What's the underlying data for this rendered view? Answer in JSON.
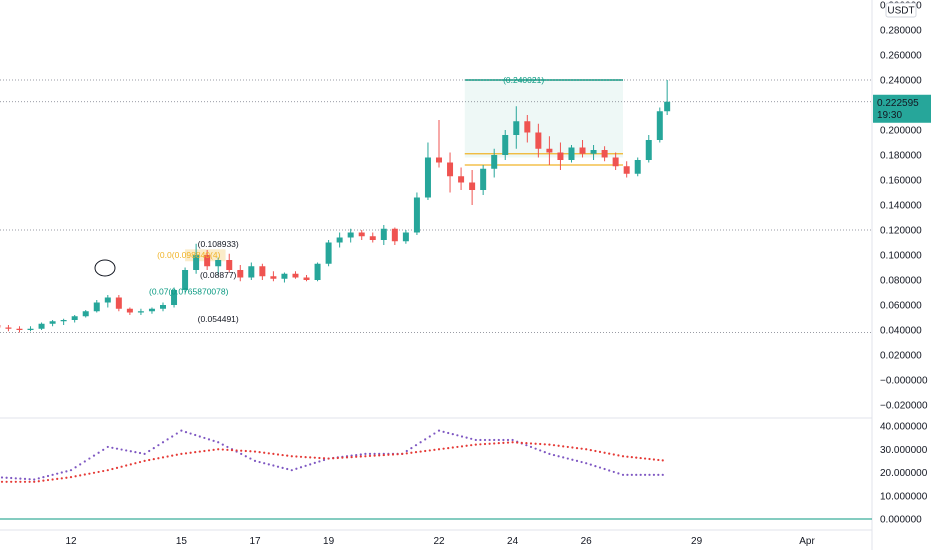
{
  "chart_data": {
    "type": "candlestick",
    "currency": "USDT",
    "price_axis": {
      "range": [
        -0.03,
        0.3
      ],
      "ticks": [
        "0.300000",
        "0.280000",
        "0.260000",
        "0.240000",
        "0.220000",
        "0.200000",
        "0.180000",
        "0.160000",
        "0.140000",
        "0.120000",
        "0.100000",
        "0.080000",
        "0.060000",
        "0.040000",
        "0.020000",
        "−0.000000",
        "−0.020000"
      ],
      "tick_values": [
        0.3,
        0.28,
        0.26,
        0.24,
        0.22,
        0.2,
        0.18,
        0.16,
        0.14,
        0.12,
        0.1,
        0.08,
        0.06,
        0.04,
        0.02,
        0.0,
        -0.02
      ]
    },
    "last_price": {
      "label": "0.222595",
      "value": 0.222595,
      "countdown": "19:30",
      "color": "#26a69a"
    },
    "horizontal_lines": [
      0.240021,
      0.222595,
      0.12,
      0.038
    ],
    "x_axis": {
      "labels": [
        "12",
        "15",
        "17",
        "19",
        "22",
        "24",
        "26",
        "29",
        "Apr"
      ],
      "label_days": [
        12,
        15,
        17,
        19,
        22,
        24,
        26,
        29,
        32
      ]
    },
    "candles_daily_centers": [
      {
        "d": 10.0,
        "o": 0.044,
        "h": 0.047,
        "l": 0.039,
        "c": 0.042
      },
      {
        "d": 10.3,
        "o": 0.042,
        "h": 0.044,
        "l": 0.039,
        "c": 0.041
      },
      {
        "d": 10.6,
        "o": 0.041,
        "h": 0.043,
        "l": 0.038,
        "c": 0.04
      },
      {
        "d": 10.9,
        "o": 0.04,
        "h": 0.043,
        "l": 0.039,
        "c": 0.041
      },
      {
        "d": 11.2,
        "o": 0.041,
        "h": 0.046,
        "l": 0.04,
        "c": 0.045
      },
      {
        "d": 11.5,
        "o": 0.045,
        "h": 0.048,
        "l": 0.043,
        "c": 0.047
      },
      {
        "d": 11.8,
        "o": 0.047,
        "h": 0.049,
        "l": 0.044,
        "c": 0.048
      },
      {
        "d": 12.1,
        "o": 0.048,
        "h": 0.052,
        "l": 0.046,
        "c": 0.051
      },
      {
        "d": 12.4,
        "o": 0.051,
        "h": 0.056,
        "l": 0.05,
        "c": 0.055
      },
      {
        "d": 12.7,
        "o": 0.055,
        "h": 0.064,
        "l": 0.054,
        "c": 0.062
      },
      {
        "d": 13.0,
        "o": 0.062,
        "h": 0.068,
        "l": 0.058,
        "c": 0.066
      },
      {
        "d": 13.3,
        "o": 0.066,
        "h": 0.068,
        "l": 0.055,
        "c": 0.057
      },
      {
        "d": 13.6,
        "o": 0.057,
        "h": 0.058,
        "l": 0.052,
        "c": 0.054
      },
      {
        "d": 13.9,
        "o": 0.054,
        "h": 0.057,
        "l": 0.052,
        "c": 0.055
      },
      {
        "d": 14.2,
        "o": 0.055,
        "h": 0.058,
        "l": 0.053,
        "c": 0.057
      },
      {
        "d": 14.5,
        "o": 0.057,
        "h": 0.062,
        "l": 0.055,
        "c": 0.06
      },
      {
        "d": 14.8,
        "o": 0.06,
        "h": 0.074,
        "l": 0.058,
        "c": 0.072
      },
      {
        "d": 15.1,
        "o": 0.072,
        "h": 0.09,
        "l": 0.07,
        "c": 0.088
      },
      {
        "d": 15.4,
        "o": 0.088,
        "h": 0.109,
        "l": 0.085,
        "c": 0.1
      },
      {
        "d": 15.7,
        "o": 0.1,
        "h": 0.104,
        "l": 0.088,
        "c": 0.091
      },
      {
        "d": 16.0,
        "o": 0.091,
        "h": 0.098,
        "l": 0.084,
        "c": 0.096
      },
      {
        "d": 16.3,
        "o": 0.096,
        "h": 0.101,
        "l": 0.086,
        "c": 0.088
      },
      {
        "d": 16.6,
        "o": 0.088,
        "h": 0.092,
        "l": 0.079,
        "c": 0.082
      },
      {
        "d": 16.9,
        "o": 0.082,
        "h": 0.094,
        "l": 0.08,
        "c": 0.091
      },
      {
        "d": 17.2,
        "o": 0.091,
        "h": 0.093,
        "l": 0.08,
        "c": 0.083
      },
      {
        "d": 17.5,
        "o": 0.083,
        "h": 0.087,
        "l": 0.079,
        "c": 0.081
      },
      {
        "d": 17.8,
        "o": 0.081,
        "h": 0.086,
        "l": 0.078,
        "c": 0.085
      },
      {
        "d": 18.1,
        "o": 0.085,
        "h": 0.087,
        "l": 0.081,
        "c": 0.082
      },
      {
        "d": 18.4,
        "o": 0.082,
        "h": 0.084,
        "l": 0.079,
        "c": 0.08
      },
      {
        "d": 18.7,
        "o": 0.08,
        "h": 0.094,
        "l": 0.079,
        "c": 0.093
      },
      {
        "d": 19.0,
        "o": 0.093,
        "h": 0.112,
        "l": 0.091,
        "c": 0.11
      },
      {
        "d": 19.3,
        "o": 0.11,
        "h": 0.118,
        "l": 0.106,
        "c": 0.114
      },
      {
        "d": 19.6,
        "o": 0.114,
        "h": 0.121,
        "l": 0.11,
        "c": 0.118
      },
      {
        "d": 19.9,
        "o": 0.118,
        "h": 0.12,
        "l": 0.112,
        "c": 0.115
      },
      {
        "d": 20.2,
        "o": 0.115,
        "h": 0.118,
        "l": 0.11,
        "c": 0.112
      },
      {
        "d": 20.5,
        "o": 0.112,
        "h": 0.124,
        "l": 0.108,
        "c": 0.121
      },
      {
        "d": 20.8,
        "o": 0.121,
        "h": 0.122,
        "l": 0.108,
        "c": 0.111
      },
      {
        "d": 21.1,
        "o": 0.111,
        "h": 0.12,
        "l": 0.109,
        "c": 0.118
      },
      {
        "d": 21.4,
        "o": 0.118,
        "h": 0.15,
        "l": 0.116,
        "c": 0.146
      },
      {
        "d": 21.7,
        "o": 0.146,
        "h": 0.19,
        "l": 0.144,
        "c": 0.178
      },
      {
        "d": 22.0,
        "o": 0.178,
        "h": 0.208,
        "l": 0.17,
        "c": 0.174
      },
      {
        "d": 22.3,
        "o": 0.174,
        "h": 0.182,
        "l": 0.15,
        "c": 0.163
      },
      {
        "d": 22.6,
        "o": 0.163,
        "h": 0.17,
        "l": 0.152,
        "c": 0.158
      },
      {
        "d": 22.9,
        "o": 0.158,
        "h": 0.168,
        "l": 0.14,
        "c": 0.152
      },
      {
        "d": 23.2,
        "o": 0.152,
        "h": 0.172,
        "l": 0.148,
        "c": 0.169
      },
      {
        "d": 23.5,
        "o": 0.169,
        "h": 0.185,
        "l": 0.162,
        "c": 0.18
      },
      {
        "d": 23.8,
        "o": 0.18,
        "h": 0.2,
        "l": 0.176,
        "c": 0.196
      },
      {
        "d": 24.1,
        "o": 0.196,
        "h": 0.219,
        "l": 0.185,
        "c": 0.207
      },
      {
        "d": 24.4,
        "o": 0.207,
        "h": 0.212,
        "l": 0.19,
        "c": 0.198
      },
      {
        "d": 24.7,
        "o": 0.198,
        "h": 0.205,
        "l": 0.178,
        "c": 0.185
      },
      {
        "d": 25.0,
        "o": 0.185,
        "h": 0.195,
        "l": 0.172,
        "c": 0.182
      },
      {
        "d": 25.3,
        "o": 0.182,
        "h": 0.19,
        "l": 0.168,
        "c": 0.176
      },
      {
        "d": 25.6,
        "o": 0.176,
        "h": 0.188,
        "l": 0.174,
        "c": 0.186
      },
      {
        "d": 25.9,
        "o": 0.186,
        "h": 0.192,
        "l": 0.178,
        "c": 0.181
      },
      {
        "d": 26.2,
        "o": 0.181,
        "h": 0.188,
        "l": 0.176,
        "c": 0.184
      },
      {
        "d": 26.5,
        "o": 0.184,
        "h": 0.187,
        "l": 0.175,
        "c": 0.178
      },
      {
        "d": 26.8,
        "o": 0.178,
        "h": 0.182,
        "l": 0.168,
        "c": 0.171
      },
      {
        "d": 27.1,
        "o": 0.171,
        "h": 0.175,
        "l": 0.162,
        "c": 0.165
      },
      {
        "d": 27.4,
        "o": 0.165,
        "h": 0.178,
        "l": 0.163,
        "c": 0.176
      },
      {
        "d": 27.7,
        "o": 0.176,
        "h": 0.196,
        "l": 0.174,
        "c": 0.192
      },
      {
        "d": 28.0,
        "o": 0.192,
        "h": 0.218,
        "l": 0.19,
        "c": 0.215
      },
      {
        "d": 28.2,
        "o": 0.215,
        "h": 0.24,
        "l": 0.212,
        "c": 0.2226
      }
    ],
    "annotations": [
      {
        "text": "(0.240021)",
        "d": 24.3,
        "y": 0.240021,
        "color": "#089981"
      },
      {
        "text": "(0.108933)",
        "d": 16.0,
        "y": 0.109,
        "color": "#131722"
      },
      {
        "text": "(0.054491)",
        "d": 16.0,
        "y": 0.049,
        "color": "#131722"
      },
      {
        "text": "(0.07(0.0765870078)",
        "d": 15.2,
        "y": 0.071,
        "color": "#089981"
      },
      {
        "text": "(0.0(0.098840(4)",
        "d": 15.2,
        "y": 0.1,
        "color": "#f0b429"
      },
      {
        "text": "(0.08877)",
        "d": 16.0,
        "y": 0.084,
        "color": "#131722"
      }
    ],
    "indicator": {
      "axis_ticks": [
        "40.000000",
        "30.000000",
        "20.000000",
        "10.000000",
        "0.000000"
      ],
      "tick_values": [
        40,
        30,
        20,
        10,
        0
      ],
      "series": [
        {
          "color": "#7e57c2",
          "days": [
            10,
            11,
            12,
            13,
            14,
            15,
            16,
            17,
            18,
            19,
            20,
            21,
            22,
            23,
            24,
            25,
            26,
            27,
            28.2
          ],
          "values": [
            18,
            17,
            21,
            31,
            28,
            38,
            33,
            25,
            21,
            26,
            28,
            28,
            38,
            34,
            34,
            28,
            24,
            19,
            19
          ]
        },
        {
          "color": "#e53935",
          "days": [
            10,
            11,
            12,
            13,
            14,
            15,
            16,
            17,
            18,
            19,
            20,
            21,
            22,
            23,
            24,
            25,
            26,
            27,
            28.2
          ],
          "values": [
            16,
            16,
            18,
            21,
            25,
            28,
            30,
            29,
            27,
            26,
            27,
            28,
            30,
            32,
            33,
            32,
            30,
            27,
            25
          ]
        }
      ]
    }
  }
}
